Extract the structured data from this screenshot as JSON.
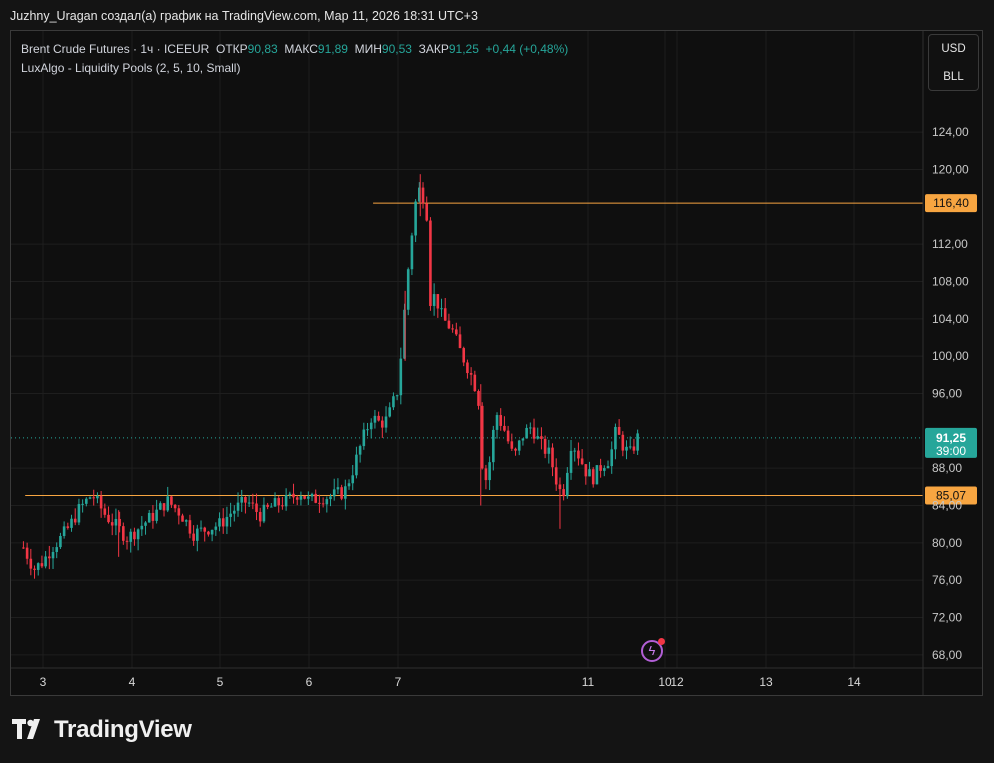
{
  "header": {
    "caption": "Juzhny_Uragan создал(а) график на TradingView.com, Мар 11, 2026 18:31 UTC+3"
  },
  "legend": {
    "symbol": "Brent Crude Futures · 1ч · ICEEUR",
    "open_label": "ОТКР",
    "open_value": "90,83",
    "high_label": "МАКС",
    "high_value": "91,89",
    "low_label": "МИН",
    "low_value": "90,53",
    "close_label": "ЗАКР",
    "close_value": "91,25",
    "change": "+0,44 (+0,48%)",
    "indicator": "LuxAlgo - Liquidity Pools (2, 5, 10, Small)"
  },
  "units": {
    "currency": "USD",
    "unit": "BLL"
  },
  "branding": {
    "name": "TradingView"
  },
  "colors": {
    "up": "#26a69a",
    "down": "#f23645",
    "level": "#f7a541",
    "background": "#0f0f0f"
  },
  "chart_data": {
    "type": "candlestick",
    "x_ticks": [
      "3",
      "4",
      "5",
      "6",
      "7",
      "10",
      "11",
      "12",
      "13",
      "14"
    ],
    "y_ticks": [
      "124,00",
      "120,00",
      "112,00",
      "108,00",
      "104,00",
      "100,00",
      "96,00",
      "88,00",
      "84,00",
      "80,00",
      "76,00",
      "72,00",
      "68,00"
    ],
    "ylim": [
      65,
      127
    ],
    "last_price": {
      "value": 91.25,
      "label": "91,25",
      "countdown": "39:00"
    },
    "levels": [
      {
        "value": 116.4,
        "label": "116,40",
        "x_start_day": 6.72
      },
      {
        "value": 85.07,
        "label": "85,07",
        "x_start_day": 2.8
      }
    ],
    "path": [
      [
        2.78,
        79.5
      ],
      [
        2.9,
        77.2
      ],
      [
        3.0,
        78.0
      ],
      [
        3.1,
        79.5
      ],
      [
        3.2,
        80.5
      ],
      [
        3.3,
        81.8
      ],
      [
        3.4,
        83.5
      ],
      [
        3.55,
        85.2
      ],
      [
        3.7,
        83.0
      ],
      [
        3.85,
        81.5
      ],
      [
        3.95,
        80.5
      ],
      [
        4.1,
        81.8
      ],
      [
        4.25,
        83.0
      ],
      [
        4.4,
        84.5
      ],
      [
        4.55,
        83.2
      ],
      [
        4.7,
        81.0
      ],
      [
        4.85,
        81.5
      ],
      [
        5.0,
        82.0
      ],
      [
        5.15,
        83.5
      ],
      [
        5.3,
        84.5
      ],
      [
        5.45,
        83.0
      ],
      [
        5.6,
        84.0
      ],
      [
        5.75,
        84.5
      ],
      [
        5.9,
        85.5
      ],
      [
        6.0,
        84.5
      ],
      [
        6.1,
        84.8
      ],
      [
        6.25,
        85.0
      ],
      [
        6.4,
        85.5
      ],
      [
        6.5,
        88.0
      ],
      [
        6.6,
        91.0
      ],
      [
        6.7,
        93.5
      ],
      [
        6.8,
        92.8
      ],
      [
        6.88,
        93.2
      ],
      [
        7.0,
        96.5
      ],
      [
        7.05,
        102.0
      ],
      [
        7.1,
        108.0
      ],
      [
        7.17,
        114.5
      ],
      [
        7.22,
        118.0
      ],
      [
        7.27,
        117.5
      ],
      [
        7.32,
        116.0
      ],
      [
        7.36,
        106.0
      ],
      [
        7.42,
        106.5
      ],
      [
        7.5,
        104.0
      ],
      [
        7.6,
        103.0
      ],
      [
        7.7,
        100.5
      ],
      [
        7.8,
        98.5
      ],
      [
        7.9,
        96.0
      ],
      [
        7.95,
        88.0
      ],
      [
        8.0,
        86.5
      ],
      [
        8.1,
        94.0
      ],
      [
        8.2,
        92.0
      ],
      [
        8.3,
        89.0
      ],
      [
        8.4,
        91.5
      ],
      [
        8.5,
        92.5
      ],
      [
        8.6,
        90.5
      ],
      [
        8.7,
        89.5
      ],
      [
        8.8,
        86.0
      ],
      [
        8.85,
        85.0
      ],
      [
        8.95,
        91.0
      ],
      [
        9.05,
        89.0
      ],
      [
        9.12,
        87.5
      ],
      [
        9.2,
        87.0
      ],
      [
        9.3,
        88.5
      ],
      [
        9.38,
        89.0
      ],
      [
        9.45,
        92.0
      ],
      [
        9.55,
        90.0
      ],
      [
        9.62,
        89.5
      ],
      [
        9.68,
        91.25
      ],
      [
        9.72,
        91.25
      ]
    ],
    "wicks": [
      {
        "x": 7.25,
        "low": 115.0,
        "high": 119.5
      },
      {
        "x": 7.08,
        "low": 99.5,
        "high": 107.0
      },
      {
        "x": 7.93,
        "low": 84.0,
        "high": 97.0
      },
      {
        "x": 8.82,
        "low": 81.5,
        "high": 87.0
      },
      {
        "x": 3.85,
        "low": 78.5,
        "high": 83.5
      }
    ]
  }
}
